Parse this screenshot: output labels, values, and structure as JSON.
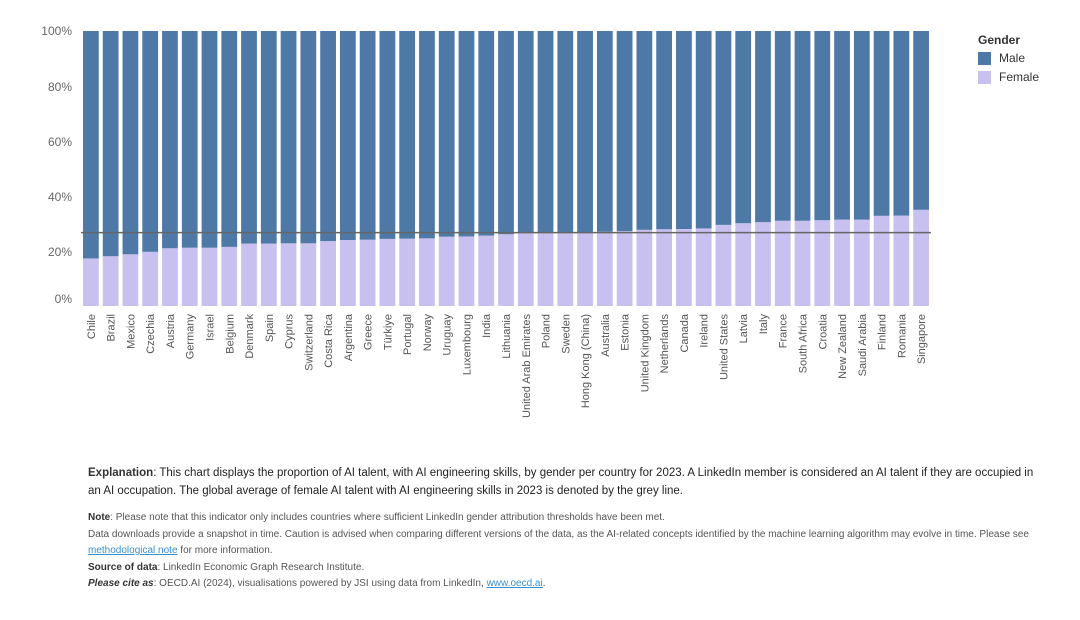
{
  "chart_data": {
    "type": "bar",
    "stacked": true,
    "normalized": true,
    "categories": [
      "Chile",
      "Brazil",
      "Mexico",
      "Czechia",
      "Austria",
      "Germany",
      "Israel",
      "Belgium",
      "Denmark",
      "Spain",
      "Cyprus",
      "Switzerland",
      "Costa Rica",
      "Argentina",
      "Greece",
      "Türkiye",
      "Portugal",
      "Norway",
      "Uruguay",
      "Luxembourg",
      "India",
      "Lithuania",
      "United Arab Emirates",
      "Poland",
      "Sweden",
      "Hong Kong (China)",
      "Australia",
      "Estonia",
      "United Kingdom",
      "Netherlands",
      "Canada",
      "Ireland",
      "United States",
      "Latvia",
      "Italy",
      "France",
      "South Africa",
      "Croatia",
      "New Zealand",
      "Saudi Arabia",
      "Finland",
      "Romania",
      "Singapore"
    ],
    "series": [
      {
        "name": "Male",
        "color": "#4e79a7",
        "values": [
          82.7,
          81.9,
          81.2,
          80.3,
          79.0,
          78.8,
          78.8,
          78.5,
          77.3,
          77.3,
          77.2,
          77.2,
          76.4,
          76.0,
          75.9,
          75.6,
          75.5,
          75.4,
          74.8,
          74.7,
          74.4,
          73.9,
          73.5,
          73.2,
          73.1,
          73.1,
          73.0,
          72.8,
          72.3,
          72.1,
          72.0,
          71.8,
          70.5,
          69.9,
          69.5,
          69.0,
          69.0,
          68.8,
          68.6,
          68.6,
          67.2,
          67.1,
          65.0
        ]
      },
      {
        "name": "Female",
        "color": "#c8c0ef",
        "values": [
          17.3,
          18.1,
          18.8,
          19.7,
          21.0,
          21.2,
          21.2,
          21.5,
          22.7,
          22.7,
          22.8,
          22.8,
          23.6,
          24.0,
          24.1,
          24.4,
          24.5,
          24.6,
          25.2,
          25.3,
          25.6,
          26.1,
          26.5,
          26.8,
          26.9,
          26.9,
          27.0,
          27.2,
          27.7,
          27.9,
          28.0,
          28.2,
          29.5,
          30.1,
          30.5,
          31.0,
          31.0,
          31.2,
          31.4,
          31.4,
          32.8,
          32.9,
          35.0
        ]
      }
    ],
    "reference_line": {
      "value": 26.7,
      "color": "#666666"
    },
    "y_ticks": [
      "0%",
      "20%",
      "40%",
      "60%",
      "80%",
      "100%"
    ],
    "ylim": [
      0,
      100
    ],
    "legend": {
      "title": "Gender",
      "position": "top-right"
    },
    "grid": false
  },
  "notes": {
    "explanation_label": "Explanation",
    "explanation_text": ": This chart displays the proportion of AI talent, with AI engineering skills, by gender per country for 2023. A LinkedIn member is considered an AI talent if they are occupied in an AI occupation. The global average of female AI talent with AI engineering skills in 2023 is denoted by the grey line.",
    "note_label": "Note",
    "note_text": ": Please note that this indicator only includes countries where sufficient LinkedIn gender attribution thresholds have been met.",
    "downloads_text": "Data downloads provide a snapshot in time. Caution is advised when comparing different versions of the data, as the AI-related concepts identified by the machine learning algorithm may evolve in time. Please see ",
    "methodological_link": "methodological note",
    "downloads_after": " for more information.",
    "source_label": "Source of data",
    "source_text": ": LinkedIn Economic Graph Research Institute.",
    "cite_label": "Please cite as",
    "cite_text": ": OECD.AI (2024), visualisations powered by JSI using data from LinkedIn, ",
    "cite_link": "www.oecd.ai",
    "cite_after": "."
  }
}
